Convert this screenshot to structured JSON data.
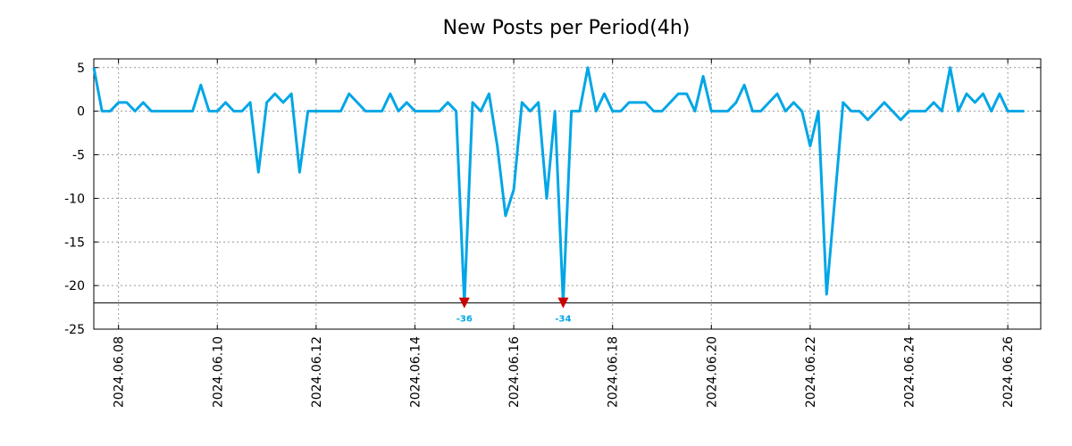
{
  "chart_data": {
    "type": "line",
    "title": "New Posts per Period(4h)",
    "xlabel": "",
    "ylabel": "",
    "ylim": [
      -25,
      6
    ],
    "yticks": [
      5,
      0,
      -5,
      -10,
      -15,
      -20,
      -25
    ],
    "x_start": "2024.06.07 12:00",
    "period_hours": 4,
    "x_range": [
      "2024.06.07 12:00",
      "2024.06.26 16:00"
    ],
    "xticks": [
      "2024.06.08",
      "2024.06.10",
      "2024.06.12",
      "2024.06.14",
      "2024.06.16",
      "2024.06.18",
      "2024.06.20",
      "2024.06.22",
      "2024.06.24",
      "2024.06.26"
    ],
    "clip_floor": -22,
    "series": [
      {
        "name": "New Posts per Period(4h)",
        "color": "#00a6e6",
        "values": [
          5,
          0,
          0,
          1,
          1,
          0,
          1,
          0,
          0,
          0,
          0,
          0,
          0,
          3,
          0,
          0,
          1,
          0,
          0,
          1,
          -7,
          1,
          2,
          1,
          2,
          -7,
          0,
          0,
          0,
          0,
          0,
          2,
          1,
          0,
          0,
          0,
          2,
          0,
          1,
          0,
          0,
          0,
          0,
          1,
          0,
          -36,
          1,
          0,
          2,
          -4,
          -12,
          -9,
          1,
          0,
          1,
          -10,
          0,
          -34,
          0,
          0,
          5,
          0,
          2,
          0,
          0,
          1,
          1,
          1,
          0,
          0,
          1,
          2,
          2,
          0,
          4,
          0,
          0,
          0,
          1,
          3,
          0,
          0,
          1,
          2,
          0,
          1,
          0,
          -4,
          0,
          -21,
          -10,
          1,
          0,
          0,
          -1,
          0,
          1,
          0,
          -1,
          0,
          0,
          0,
          1,
          0,
          5,
          0,
          2,
          1,
          2,
          0,
          2,
          0,
          0,
          0
        ]
      }
    ],
    "clipped_markers": [
      {
        "label": "-36",
        "color": "#cc0000"
      },
      {
        "label": "-34",
        "color": "#cc0000"
      }
    ]
  }
}
